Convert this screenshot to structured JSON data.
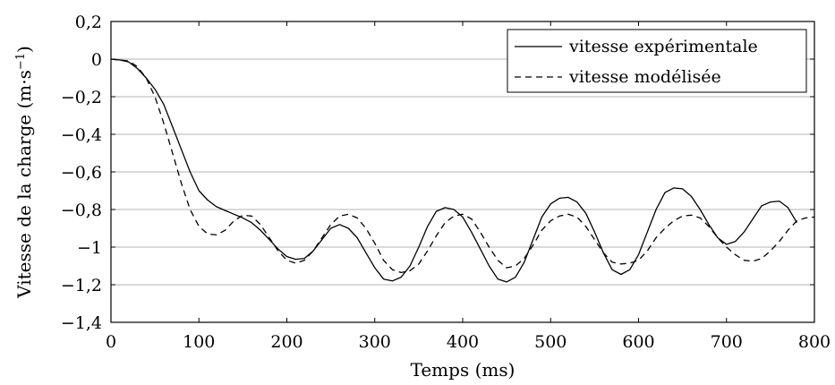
{
  "chart_data": {
    "type": "line",
    "xlabel": "Temps (ms)",
    "ylabel": "Vitesse de la charge (m·s",
    "ylabel_superscript": "−1",
    "ylabel_close": ")",
    "xlim": [
      0,
      800
    ],
    "ylim": [
      -1.4,
      0.2
    ],
    "grid": "horizontal",
    "legend_position": "top-right",
    "x_ticks": [
      {
        "value": 0,
        "label": "0"
      },
      {
        "value": 100,
        "label": "100"
      },
      {
        "value": 200,
        "label": "200"
      },
      {
        "value": 300,
        "label": "300"
      },
      {
        "value": 400,
        "label": "400"
      },
      {
        "value": 500,
        "label": "500"
      },
      {
        "value": 600,
        "label": "600"
      },
      {
        "value": 700,
        "label": "700"
      },
      {
        "value": 800,
        "label": "800"
      }
    ],
    "y_ticks": [
      {
        "value": 0.2,
        "label": "0,2"
      },
      {
        "value": 0,
        "label": "0"
      },
      {
        "value": -0.2,
        "label": "−0,2"
      },
      {
        "value": -0.4,
        "label": "−0,4"
      },
      {
        "value": -0.6,
        "label": "−0,6"
      },
      {
        "value": -0.8,
        "label": "−0,8"
      },
      {
        "value": -1,
        "label": "−1"
      },
      {
        "value": -1.2,
        "label": "−1,2"
      },
      {
        "value": -1.4,
        "label": "−1,4"
      }
    ],
    "series": [
      {
        "name": "vitesse expérimentale",
        "style": "solid",
        "color": "#000000",
        "x": [
          0,
          10,
          20,
          30,
          40,
          50,
          60,
          70,
          80,
          90,
          100,
          110,
          120,
          130,
          140,
          150,
          160,
          170,
          180,
          190,
          200,
          210,
          220,
          230,
          240,
          250,
          260,
          270,
          280,
          290,
          300,
          310,
          320,
          330,
          340,
          350,
          360,
          370,
          380,
          390,
          400,
          410,
          420,
          430,
          440,
          450,
          460,
          470,
          480,
          490,
          500,
          510,
          520,
          530,
          540,
          550,
          560,
          570,
          580,
          590,
          600,
          610,
          620,
          630,
          640,
          650,
          660,
          670,
          680,
          690,
          700,
          710,
          720,
          730,
          740,
          750,
          760,
          770,
          780
        ],
        "y": [
          0,
          -0.005,
          -0.015,
          -0.05,
          -0.1,
          -0.16,
          -0.24,
          -0.36,
          -0.48,
          -0.6,
          -0.7,
          -0.75,
          -0.785,
          -0.805,
          -0.825,
          -0.845,
          -0.87,
          -0.91,
          -0.96,
          -1.01,
          -1.05,
          -1.065,
          -1.06,
          -1.02,
          -0.96,
          -0.9,
          -0.88,
          -0.9,
          -0.95,
          -1.03,
          -1.11,
          -1.17,
          -1.18,
          -1.16,
          -1.1,
          -1.0,
          -0.89,
          -0.81,
          -0.79,
          -0.8,
          -0.84,
          -0.92,
          -1.01,
          -1.1,
          -1.17,
          -1.185,
          -1.16,
          -1.08,
          -0.96,
          -0.84,
          -0.77,
          -0.74,
          -0.735,
          -0.76,
          -0.82,
          -0.92,
          -1.03,
          -1.12,
          -1.145,
          -1.12,
          -1.04,
          -0.92,
          -0.8,
          -0.71,
          -0.685,
          -0.69,
          -0.73,
          -0.8,
          -0.88,
          -0.95,
          -0.985,
          -0.97,
          -0.92,
          -0.85,
          -0.78,
          -0.76,
          -0.755,
          -0.79,
          -0.87
        ]
      },
      {
        "name": "vitesse modélisée",
        "style": "dashed",
        "color": "#000000",
        "x": [
          0,
          10,
          20,
          30,
          40,
          50,
          60,
          70,
          80,
          90,
          100,
          110,
          120,
          130,
          140,
          150,
          160,
          170,
          180,
          190,
          200,
          210,
          220,
          230,
          240,
          250,
          260,
          270,
          280,
          290,
          300,
          310,
          320,
          330,
          340,
          350,
          360,
          370,
          380,
          390,
          400,
          410,
          420,
          430,
          440,
          450,
          460,
          470,
          480,
          490,
          500,
          510,
          520,
          530,
          540,
          550,
          560,
          570,
          580,
          590,
          600,
          610,
          620,
          630,
          640,
          650,
          660,
          670,
          680,
          690,
          700,
          710,
          720,
          730,
          740,
          750,
          760,
          770,
          780,
          790,
          800
        ],
        "y": [
          0,
          -0.005,
          -0.01,
          -0.04,
          -0.1,
          -0.2,
          -0.34,
          -0.5,
          -0.66,
          -0.8,
          -0.89,
          -0.93,
          -0.935,
          -0.91,
          -0.86,
          -0.83,
          -0.835,
          -0.88,
          -0.95,
          -1.02,
          -1.07,
          -1.085,
          -1.07,
          -1.02,
          -0.95,
          -0.88,
          -0.835,
          -0.825,
          -0.845,
          -0.9,
          -0.98,
          -1.07,
          -1.12,
          -1.135,
          -1.125,
          -1.09,
          -1.02,
          -0.94,
          -0.87,
          -0.835,
          -0.825,
          -0.85,
          -0.92,
          -1.0,
          -1.07,
          -1.11,
          -1.1,
          -1.06,
          -0.99,
          -0.91,
          -0.86,
          -0.835,
          -0.825,
          -0.84,
          -0.89,
          -0.96,
          -1.03,
          -1.08,
          -1.09,
          -1.085,
          -1.07,
          -1.02,
          -0.95,
          -0.9,
          -0.86,
          -0.835,
          -0.83,
          -0.845,
          -0.89,
          -0.95,
          -1.0,
          -1.04,
          -1.07,
          -1.075,
          -1.06,
          -1.02,
          -0.97,
          -0.91,
          -0.86,
          -0.845,
          -0.84
        ]
      }
    ]
  }
}
